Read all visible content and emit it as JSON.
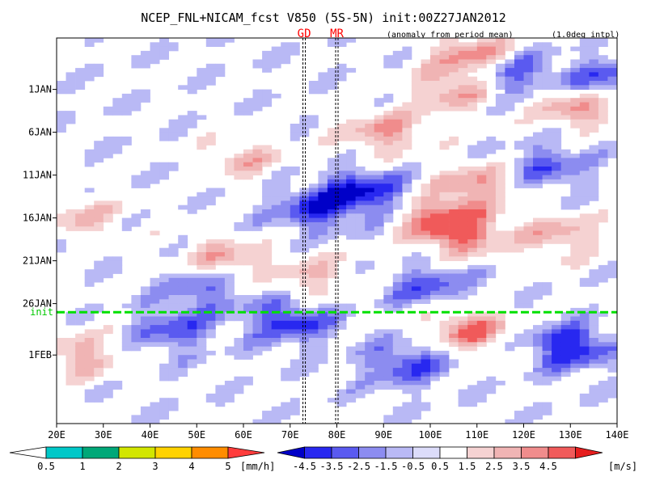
{
  "chart_data": {
    "type": "heatmap",
    "title": "NCEP_FNL+NICAM_fcst V850 (5S-5N) init:00Z27JAN2012",
    "subtitle_left": "(anomaly from period mean)",
    "subtitle_right": "(1.0deg intpl)",
    "xlabel": "",
    "ylabel": "",
    "x_range": [
      20,
      140
    ],
    "x_ticks": [
      {
        "value": 20,
        "label": "20E"
      },
      {
        "value": 30,
        "label": "30E"
      },
      {
        "value": 40,
        "label": "40E"
      },
      {
        "value": 50,
        "label": "50E"
      },
      {
        "value": 60,
        "label": "60E"
      },
      {
        "value": 70,
        "label": "70E"
      },
      {
        "value": 80,
        "label": "80E"
      },
      {
        "value": 90,
        "label": "90E"
      },
      {
        "value": 100,
        "label": "100E"
      },
      {
        "value": 110,
        "label": "110E"
      },
      {
        "value": 120,
        "label": "120E"
      },
      {
        "value": 130,
        "label": "130E"
      },
      {
        "value": 140,
        "label": "140E"
      }
    ],
    "y_range_days": [
      -5,
      40
    ],
    "y_ticks": [
      {
        "day": 1,
        "label": "1JAN"
      },
      {
        "day": 6,
        "label": "6JAN"
      },
      {
        "day": 11,
        "label": "11JAN"
      },
      {
        "day": 16,
        "label": "16JAN"
      },
      {
        "day": 21,
        "label": "21JAN"
      },
      {
        "day": 26,
        "label": "26JAN"
      },
      {
        "day": 32,
        "label": "1FEB"
      }
    ],
    "init_day": 27,
    "init_label": "init",
    "site_markers": [
      {
        "label": "GD",
        "lon": 73
      },
      {
        "label": "MR",
        "lon": 80
      }
    ],
    "anomaly_features": [
      {
        "sign": "positive",
        "lon": 110,
        "day": -3,
        "amp": 4.5
      },
      {
        "sign": "positive",
        "lon": 105,
        "day": 1,
        "amp": 3.5
      },
      {
        "sign": "positive",
        "lon": 132,
        "day": 3,
        "amp": 4.0
      },
      {
        "sign": "positive",
        "lon": 90,
        "day": 6,
        "amp": 3.5
      },
      {
        "sign": "positive",
        "lon": 60,
        "day": 9,
        "amp": 2.5
      },
      {
        "sign": "positive",
        "lon": 110,
        "day": 12,
        "amp": 3.5
      },
      {
        "sign": "positive",
        "lon": 102,
        "day": 16,
        "amp": 4.0
      },
      {
        "sign": "positive",
        "lon": 107,
        "day": 18,
        "amp": 4.0
      },
      {
        "sign": "positive",
        "lon": 128,
        "day": 18,
        "amp": 3.0
      },
      {
        "sign": "positive",
        "lon": 56,
        "day": 21,
        "amp": 3.5
      },
      {
        "sign": "positive",
        "lon": 25,
        "day": 16,
        "amp": 2.5
      },
      {
        "sign": "positive",
        "lon": 75,
        "day": 23,
        "amp": 2.5
      },
      {
        "sign": "positive",
        "lon": 108,
        "day": 29,
        "amp": 4.5
      },
      {
        "sign": "positive",
        "lon": 25,
        "day": 32,
        "amp": 3.0
      },
      {
        "sign": "negative",
        "lon": 117,
        "day": -1,
        "amp": -4.0
      },
      {
        "sign": "negative",
        "lon": 137,
        "day": 0,
        "amp": -3.5
      },
      {
        "sign": "negative",
        "lon": 86,
        "day": 13,
        "amp": -4.5
      },
      {
        "sign": "negative",
        "lon": 75,
        "day": 15,
        "amp": -3.5
      },
      {
        "sign": "negative",
        "lon": 125,
        "day": 10,
        "amp": -3.0
      },
      {
        "sign": "negative",
        "lon": 52,
        "day": 24,
        "amp": -3.0
      },
      {
        "sign": "negative",
        "lon": 100,
        "day": 24,
        "amp": -3.0
      },
      {
        "sign": "negative",
        "lon": 70,
        "day": 28,
        "amp": -4.0
      },
      {
        "sign": "negative",
        "lon": 130,
        "day": 31,
        "amp": -4.5
      },
      {
        "sign": "negative",
        "lon": 95,
        "day": 33,
        "amp": -3.5
      },
      {
        "sign": "negative",
        "lon": 45,
        "day": 29,
        "amp": -3.0
      }
    ],
    "precip_colorbar": {
      "unit": "[mm/h]",
      "labels": [
        "0.5",
        "1",
        "2",
        "3",
        "4",
        "5"
      ],
      "colors": [
        "#ffffff",
        "#00c8c8",
        "#00a878",
        "#d2e600",
        "#ffd200",
        "#ff8c00",
        "#ff3c3c"
      ]
    },
    "v850_colorbar": {
      "unit": "[m/s]",
      "labels": [
        "-4.5",
        "-3.5",
        "-2.5",
        "-1.5",
        "-0.5",
        "0.5",
        "1.5",
        "2.5",
        "3.5",
        "4.5"
      ],
      "colors": [
        "#0000c8",
        "#2828f0",
        "#5a5af0",
        "#8c8cf0",
        "#b9b9f5",
        "#dcdcfa",
        "#ffffff",
        "#f5d2d2",
        "#f0b4b4",
        "#f08c8c",
        "#f05a5a",
        "#e61e1e"
      ]
    }
  }
}
